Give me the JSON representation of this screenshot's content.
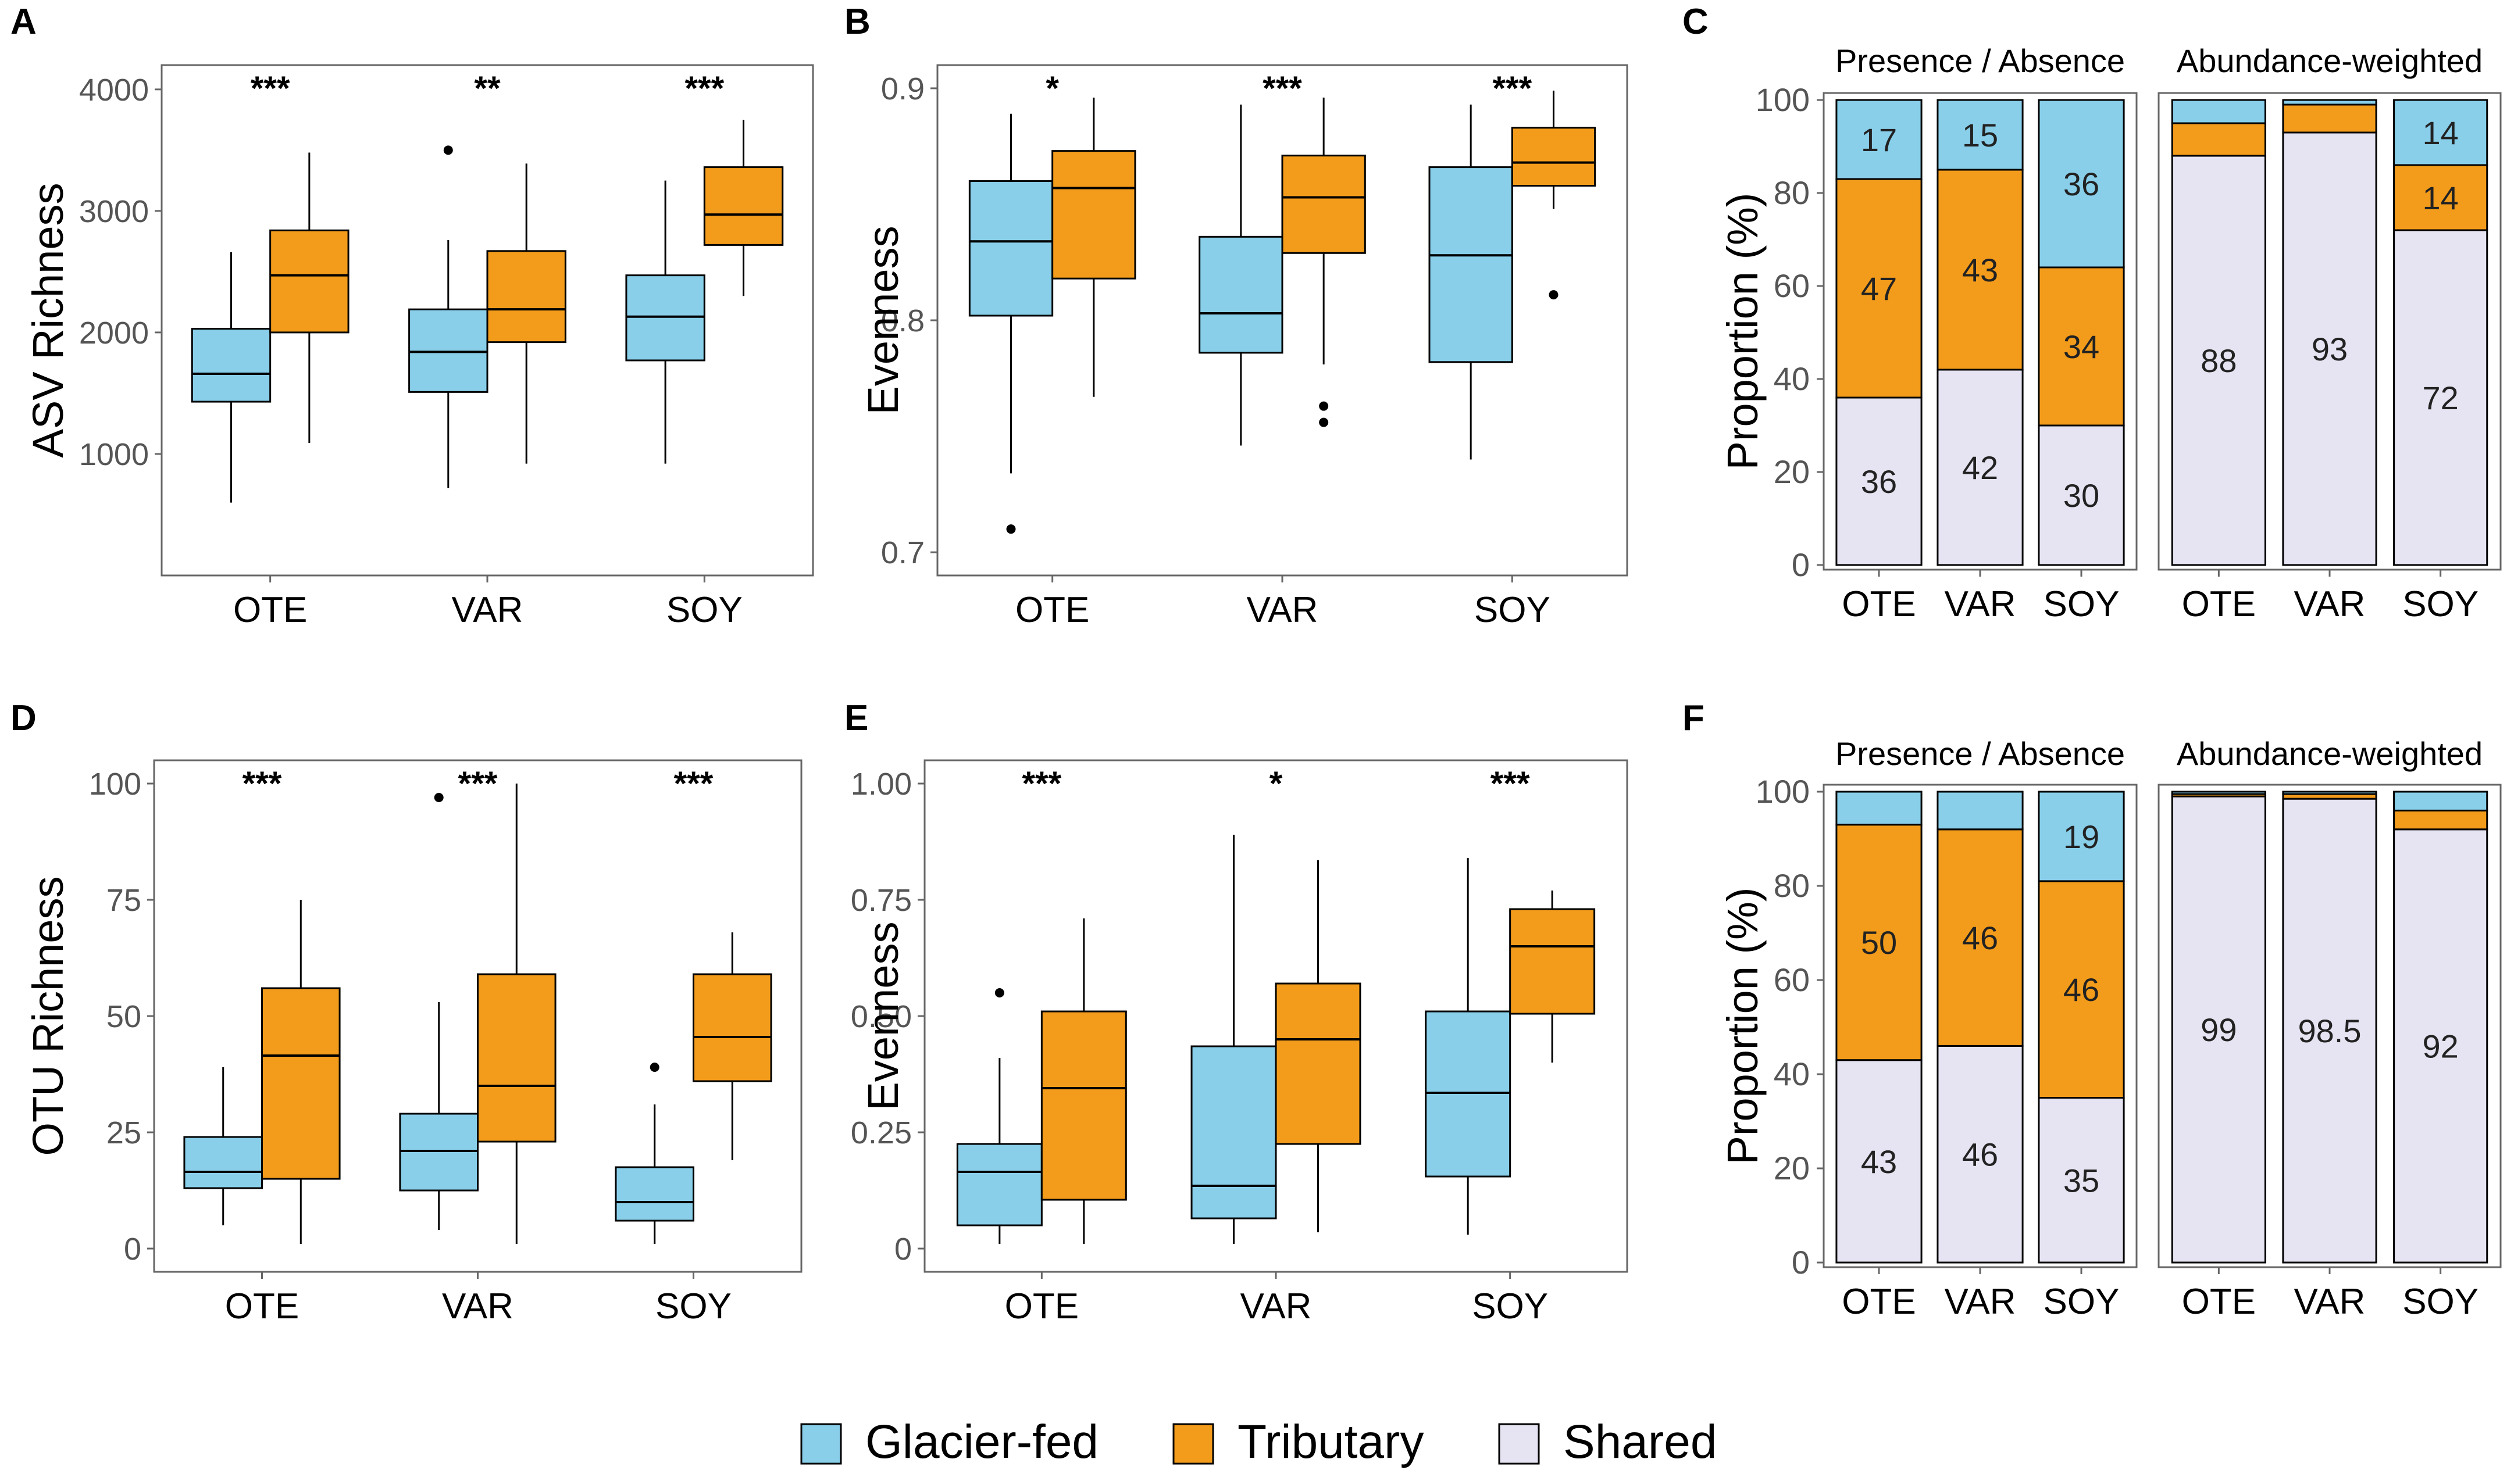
{
  "colors": {
    "glacier": "#89CFEA",
    "tributary": "#F39C1B",
    "shared": "#E6E4F2",
    "stroke": "#000000",
    "frame": "#666666",
    "tick_text": "#555555"
  },
  "legend": {
    "items": [
      {
        "label": "Glacier-fed",
        "color": "#89CFEA"
      },
      {
        "label": "Tributary",
        "color": "#F39C1B"
      },
      {
        "label": "Shared",
        "color": "#E6E4F2"
      }
    ]
  },
  "chart_data": [
    {
      "panel": "A",
      "type": "boxplot",
      "ylabel": "ASV Richness",
      "categories": [
        "OTE",
        "VAR",
        "SOY"
      ],
      "ylim": [
        0,
        4200
      ],
      "yticks": [
        1000,
        2000,
        3000,
        4000
      ],
      "significance": [
        "***",
        "**",
        "***"
      ],
      "series": [
        {
          "name": "Glacier-fed",
          "boxes": [
            {
              "min": 600,
              "q1": 1430,
              "median": 1660,
              "q3": 2030,
              "max": 2660,
              "outliers": []
            },
            {
              "min": 720,
              "q1": 1510,
              "median": 1840,
              "q3": 2190,
              "max": 2760,
              "outliers": [
                3500
              ]
            },
            {
              "min": 920,
              "q1": 1770,
              "median": 2130,
              "q3": 2470,
              "max": 3250,
              "outliers": []
            }
          ]
        },
        {
          "name": "Tributary",
          "boxes": [
            {
              "min": 1090,
              "q1": 2000,
              "median": 2470,
              "q3": 2840,
              "max": 3480,
              "outliers": []
            },
            {
              "min": 920,
              "q1": 1920,
              "median": 2190,
              "q3": 2670,
              "max": 3390,
              "outliers": []
            },
            {
              "min": 2300,
              "q1": 2720,
              "median": 2970,
              "q3": 3360,
              "max": 3750,
              "outliers": []
            }
          ]
        }
      ]
    },
    {
      "panel": "B",
      "type": "boxplot",
      "ylabel": "Evenness",
      "categories": [
        "OTE",
        "VAR",
        "SOY"
      ],
      "ylim": [
        0.69,
        0.91
      ],
      "yticks": [
        0.7,
        0.8,
        0.9
      ],
      "ytick_labels": [
        "0.7",
        "0.8",
        "0.9"
      ],
      "significance": [
        "*",
        "***",
        "***"
      ],
      "series": [
        {
          "name": "Glacier-fed",
          "boxes": [
            {
              "min": 0.734,
              "q1": 0.802,
              "median": 0.834,
              "q3": 0.86,
              "max": 0.889,
              "outliers": [
                0.71
              ]
            },
            {
              "min": 0.746,
              "q1": 0.786,
              "median": 0.803,
              "q3": 0.836,
              "max": 0.893,
              "outliers": []
            },
            {
              "min": 0.74,
              "q1": 0.782,
              "median": 0.828,
              "q3": 0.866,
              "max": 0.893,
              "outliers": []
            }
          ]
        },
        {
          "name": "Tributary",
          "boxes": [
            {
              "min": 0.767,
              "q1": 0.818,
              "median": 0.857,
              "q3": 0.873,
              "max": 0.896,
              "outliers": []
            },
            {
              "min": 0.781,
              "q1": 0.829,
              "median": 0.853,
              "q3": 0.871,
              "max": 0.896,
              "outliers": [
                0.763,
                0.756
              ]
            },
            {
              "min": 0.848,
              "q1": 0.858,
              "median": 0.868,
              "q3": 0.883,
              "max": 0.899,
              "outliers": [
                0.811
              ]
            }
          ]
        }
      ]
    },
    {
      "panel": "C",
      "type": "stacked_bar",
      "ylabel": "Proportion (%)",
      "yticks": [
        0,
        20,
        40,
        60,
        80,
        100
      ],
      "facets": [
        {
          "title": "Presence / Absence",
          "categories": [
            "OTE",
            "VAR",
            "SOY"
          ],
          "shared": [
            36,
            42,
            30
          ],
          "tributary": [
            47,
            43,
            34
          ],
          "glacier": [
            17,
            15,
            36
          ],
          "labels": [
            [
              "36",
              "47",
              "17"
            ],
            [
              "42",
              "43",
              "15"
            ],
            [
              "30",
              "34",
              "36"
            ]
          ]
        },
        {
          "title": "Abundance-weighted",
          "categories": [
            "OTE",
            "VAR",
            "SOY"
          ],
          "shared": [
            88,
            93,
            72
          ],
          "tributary": [
            7,
            6,
            14
          ],
          "glacier": [
            5,
            1,
            14
          ],
          "labels": [
            [
              "88",
              "",
              ""
            ],
            [
              "93",
              "",
              ""
            ],
            [
              "72",
              "14",
              "14"
            ]
          ]
        }
      ]
    },
    {
      "panel": "D",
      "type": "boxplot",
      "ylabel": "OTU Richness",
      "categories": [
        "OTE",
        "VAR",
        "SOY"
      ],
      "ylim": [
        -5,
        105
      ],
      "yticks": [
        0,
        25,
        50,
        75,
        100
      ],
      "significance": [
        "***",
        "***",
        "***"
      ],
      "series": [
        {
          "name": "Glacier-fed",
          "boxes": [
            {
              "min": 5,
              "q1": 13,
              "median": 16.5,
              "q3": 24,
              "max": 39,
              "outliers": []
            },
            {
              "min": 4,
              "q1": 12.5,
              "median": 21,
              "q3": 29,
              "max": 53,
              "outliers": [
                97
              ]
            },
            {
              "min": 1,
              "q1": 6,
              "median": 10,
              "q3": 17.5,
              "max": 31,
              "outliers": [
                39
              ]
            }
          ]
        },
        {
          "name": "Tributary",
          "boxes": [
            {
              "min": 1,
              "q1": 15,
              "median": 41.5,
              "q3": 56,
              "max": 75,
              "outliers": []
            },
            {
              "min": 1,
              "q1": 23,
              "median": 35,
              "q3": 59,
              "max": 100,
              "outliers": []
            },
            {
              "min": 19,
              "q1": 36,
              "median": 45.5,
              "q3": 59,
              "max": 68,
              "outliers": []
            }
          ]
        }
      ]
    },
    {
      "panel": "E",
      "type": "boxplot",
      "ylabel": "Evenness",
      "categories": [
        "OTE",
        "VAR",
        "SOY"
      ],
      "ylim": [
        -0.05,
        1.05
      ],
      "yticks": [
        0,
        0.25,
        0.5,
        0.75,
        1.0
      ],
      "ytick_labels": [
        "0",
        "0.25",
        "0.50",
        "0.75",
        "1.00"
      ],
      "significance": [
        "***",
        "*",
        "***"
      ],
      "series": [
        {
          "name": "Glacier-fed",
          "boxes": [
            {
              "min": 0.01,
              "q1": 0.05,
              "median": 0.165,
              "q3": 0.225,
              "max": 0.41,
              "outliers": [
                0.55
              ]
            },
            {
              "min": 0.01,
              "q1": 0.065,
              "median": 0.135,
              "q3": 0.435,
              "max": 0.89,
              "outliers": []
            },
            {
              "min": 0.03,
              "q1": 0.155,
              "median": 0.335,
              "q3": 0.51,
              "max": 0.84,
              "outliers": []
            }
          ]
        },
        {
          "name": "Tributary",
          "boxes": [
            {
              "min": 0.01,
              "q1": 0.105,
              "median": 0.345,
              "q3": 0.51,
              "max": 0.71,
              "outliers": []
            },
            {
              "min": 0.035,
              "q1": 0.225,
              "median": 0.45,
              "q3": 0.57,
              "max": 0.835,
              "outliers": []
            },
            {
              "min": 0.4,
              "q1": 0.505,
              "median": 0.65,
              "q3": 0.73,
              "max": 0.77,
              "outliers": []
            }
          ]
        }
      ]
    },
    {
      "panel": "F",
      "type": "stacked_bar",
      "ylabel": "Proportion (%)",
      "yticks": [
        0,
        20,
        40,
        60,
        80,
        100
      ],
      "facets": [
        {
          "title": "Presence / Absence",
          "categories": [
            "OTE",
            "VAR",
            "SOY"
          ],
          "shared": [
            43,
            46,
            35
          ],
          "tributary": [
            50,
            46,
            46
          ],
          "glacier": [
            7,
            8,
            19
          ],
          "labels": [
            [
              "43",
              "50",
              ""
            ],
            [
              "46",
              "46",
              ""
            ],
            [
              "35",
              "46",
              "19"
            ]
          ]
        },
        {
          "title": "Abundance-weighted",
          "categories": [
            "OTE",
            "VAR",
            "SOY"
          ],
          "shared": [
            99,
            98.5,
            92
          ],
          "tributary": [
            0.5,
            1,
            4
          ],
          "glacier": [
            0.5,
            0.5,
            4
          ],
          "labels": [
            [
              "99",
              "",
              ""
            ],
            [
              "98.5",
              "",
              ""
            ],
            [
              "92",
              "",
              ""
            ]
          ]
        }
      ]
    }
  ]
}
